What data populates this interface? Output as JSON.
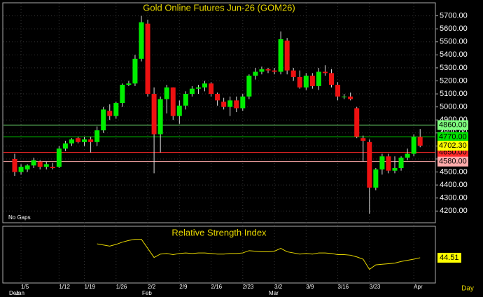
{
  "chart_data": [
    {
      "type": "candlestick",
      "title": "Gold Online Futures Jun-26 (GOM26)",
      "note": "No Gaps",
      "x_axis_label": "Day",
      "categories": [
        null,
        "1/5",
        null,
        null,
        null,
        null,
        null,
        "1/12",
        null,
        null,
        null,
        "1/19",
        null,
        null,
        null,
        null,
        "1/26",
        null,
        null,
        null,
        null,
        "2/2",
        null,
        null,
        null,
        null,
        "2/9",
        null,
        null,
        null,
        null,
        "2/16",
        null,
        null,
        null,
        null,
        "2/23",
        null,
        null,
        null,
        null,
        "3/2",
        null,
        null,
        null,
        null,
        "3/9",
        null,
        null,
        null,
        null,
        "3/16",
        null,
        null,
        null,
        null,
        "3/23",
        null,
        null,
        null,
        null,
        null,
        null,
        "Apr",
        null
      ],
      "months": [
        "Dec",
        "Jan",
        null,
        null,
        null,
        null,
        null,
        null,
        null,
        null,
        null,
        null,
        null,
        null,
        null,
        null,
        null,
        null,
        null,
        null,
        null,
        "Feb",
        null,
        null,
        null,
        null,
        null,
        null,
        null,
        null,
        null,
        null,
        null,
        null,
        null,
        null,
        null,
        null,
        null,
        null,
        null,
        "Mar",
        null,
        null,
        null,
        null,
        null,
        null,
        null,
        null,
        null,
        null,
        null,
        null,
        null,
        null,
        null,
        null,
        null,
        null,
        null,
        null,
        null,
        null,
        null
      ],
      "open": [
        4600,
        4500,
        4520,
        4550,
        4580,
        4540,
        4540,
        4540,
        4680,
        4720,
        4760,
        4730,
        4750,
        4730,
        4820,
        4970,
        4930,
        5030,
        5170,
        5180,
        5370,
        5640,
        5100,
        4790,
        5060,
        5150,
        4930,
        5010,
        5100,
        5140,
        5150,
        5180,
        5100,
        5040,
        5000,
        5050,
        4990,
        5080,
        5240,
        5270,
        5290,
        5280,
        5270,
        5510,
        5280,
        5230,
        5150,
        5240,
        5160,
        5270,
        5260,
        5170,
        5080,
        5080,
        4990,
        4760,
        4730,
        4380,
        4520,
        4620,
        4510,
        4530,
        4610,
        4640,
        4770
      ],
      "high": [
        4640,
        4560,
        4560,
        4610,
        4590,
        4580,
        4570,
        4700,
        4740,
        4760,
        4770,
        4770,
        4770,
        4850,
        5000,
        5020,
        5040,
        5180,
        5200,
        5400,
        5700,
        5670,
        5150,
        5080,
        5170,
        5150,
        5050,
        5120,
        5160,
        5170,
        5200,
        5190,
        5110,
        5070,
        5080,
        5080,
        5100,
        5250,
        5300,
        5310,
        5300,
        5300,
        5580,
        5530,
        5300,
        5280,
        5260,
        5260,
        5300,
        5320,
        5290,
        5190,
        5100,
        5110,
        5000,
        4780,
        4750,
        4530,
        4640,
        4640,
        4620,
        4620,
        4680,
        4790,
        4830
      ],
      "low": [
        4470,
        4480,
        4500,
        4530,
        4520,
        4520,
        4520,
        4530,
        4660,
        4700,
        4720,
        4700,
        4650,
        4700,
        4800,
        4900,
        4910,
        5000,
        5160,
        5160,
        5350,
        5080,
        4490,
        4650,
        4950,
        4900,
        4870,
        4980,
        5080,
        5100,
        5120,
        5080,
        5010,
        4980,
        4930,
        4960,
        4970,
        5060,
        5210,
        5250,
        5260,
        5250,
        5250,
        5250,
        5200,
        5140,
        5130,
        5140,
        5130,
        5240,
        5150,
        5050,
        5060,
        5050,
        4760,
        4580,
        4180,
        4360,
        4480,
        4490,
        4490,
        4510,
        4590,
        4620,
        4690
      ],
      "close": [
        4500,
        4540,
        4550,
        4590,
        4540,
        4560,
        4530,
        4680,
        4720,
        4750,
        4730,
        4750,
        4730,
        4820,
        4980,
        4930,
        5030,
        5170,
        5180,
        5370,
        5650,
        5100,
        4790,
        5060,
        5150,
        4930,
        5010,
        5100,
        5140,
        5150,
        5180,
        5100,
        5050,
        5000,
        5050,
        4990,
        5080,
        5240,
        5270,
        5290,
        5280,
        5270,
        5520,
        5280,
        5230,
        5150,
        5240,
        5160,
        5270,
        5260,
        5170,
        5080,
        5080,
        5060,
        4770,
        4740,
        4380,
        4520,
        4620,
        4510,
        4530,
        4610,
        4640,
        4770,
        4702.3
      ],
      "last_label": "4702.30",
      "up_color": "#00ee00",
      "down_color": "#ee1111",
      "levels": [
        {
          "value": 4860,
          "label": "4860.00",
          "color": "#7fff7f"
        },
        {
          "value": 4770,
          "label": "4770.00",
          "color": "#00e000"
        },
        {
          "value": 4650,
          "label": "4650.00",
          "color": "#ff2a2a"
        },
        {
          "value": 4580,
          "label": "4580.00",
          "color": "#ffaaaa"
        }
      ],
      "ylim": [
        4110,
        5800
      ],
      "yticks": [
        {
          "value": 4200,
          "label": "4200.00"
        },
        {
          "value": 4300,
          "label": "4300.00"
        },
        {
          "value": 4400,
          "label": "4400.00"
        },
        {
          "value": 4500,
          "label": "4500.00"
        },
        {
          "value": 4600,
          "label": "4600.00"
        },
        {
          "value": 4700,
          "label": "4700.00"
        },
        {
          "value": 4800,
          "label": "4800.00"
        },
        {
          "value": 4900,
          "label": "4900.00"
        },
        {
          "value": 5000,
          "label": "5000.00"
        },
        {
          "value": 5100,
          "label": "5100.00"
        },
        {
          "value": 5200,
          "label": "5200.00"
        },
        {
          "value": 5300,
          "label": "5300.00"
        },
        {
          "value": 5400,
          "label": "5400.00"
        },
        {
          "value": 5500,
          "label": "5500.00"
        },
        {
          "value": 5600,
          "label": "5600.00"
        },
        {
          "value": 5700,
          "label": "5700.00"
        }
      ],
      "grid": true
    },
    {
      "type": "line",
      "title": "Relative Strength Index",
      "color": "#e8d800",
      "values": [
        null,
        null,
        null,
        null,
        null,
        null,
        null,
        null,
        null,
        null,
        null,
        null,
        null,
        69,
        67,
        65,
        68,
        72,
        75,
        77,
        77,
        61,
        45,
        51,
        52,
        50,
        52,
        53,
        52,
        53,
        53,
        52,
        51,
        51,
        52,
        52,
        53,
        57,
        56,
        55,
        55,
        56,
        61,
        55,
        53,
        51,
        52,
        51,
        53,
        53,
        52,
        50,
        50,
        49,
        46,
        42,
        24,
        32,
        33,
        34,
        35,
        38,
        40,
        42,
        44.51
      ],
      "last_label": "44.51",
      "ylim": [
        0,
        100
      ]
    }
  ]
}
